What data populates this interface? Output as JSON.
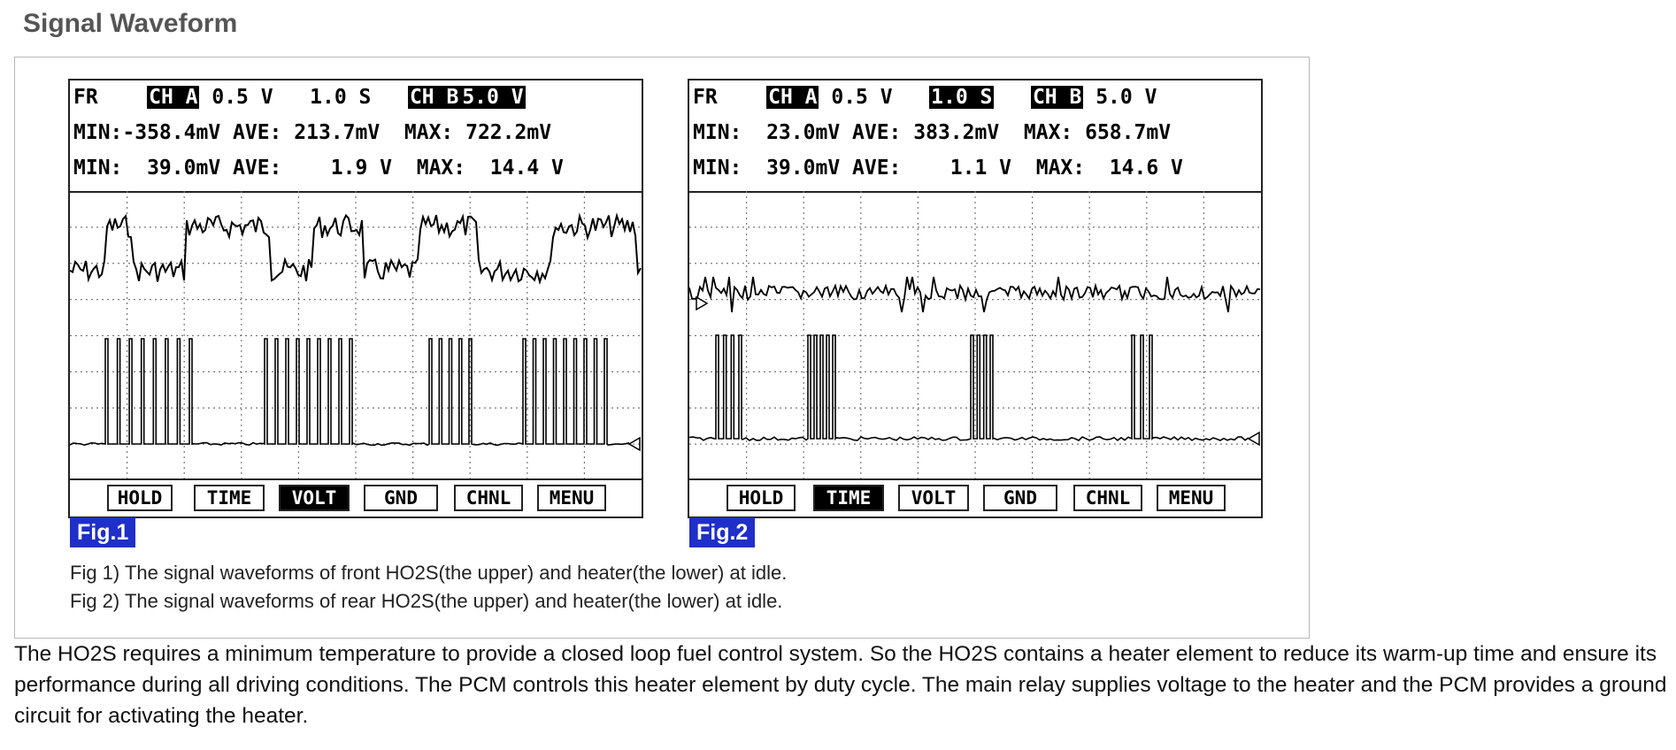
{
  "page_title": "Signal Waveform",
  "figures": [
    {
      "label": "Fig.1",
      "header": {
        "fr": "FR",
        "ch_a": "CH A",
        "ch_a_scale": "0.5 V",
        "time_scale": "1.0 S",
        "ch_b": "CH B",
        "ch_b_scale": "5.0 V",
        "row2": "MIN:-358.4mV AVE: 213.7mV  MAX: 722.2mV",
        "row3": "MIN:  39.0mV AVE:    1.9 V  MAX:  14.4 V"
      },
      "buttons": [
        "HOLD",
        "TIME",
        "VOLT",
        "GND",
        "CHNL",
        "MENU"
      ],
      "active_button": "VOLT"
    },
    {
      "label": "Fig.2",
      "header": {
        "fr": "FR",
        "ch_a": "CH A",
        "ch_a_scale": "0.5 V",
        "time_scale": "1.0 S",
        "ch_b": "CH B",
        "ch_b_scale": "5.0 V",
        "row2": "MIN:  23.0mV AVE: 383.2mV  MAX: 658.7mV",
        "row3": "MIN:  39.0mV AVE:    1.1 V  MAX:  14.6 V"
      },
      "buttons": [
        "HOLD",
        "TIME",
        "VOLT",
        "GND",
        "CHNL",
        "MENU"
      ],
      "active_button": "TIME"
    }
  ],
  "captions": [
    "Fig 1) The signal waveforms of front HO2S(the upper) and heater(the lower) at idle.",
    "Fig 2) The signal waveforms of rear HO2S(the upper) and heater(the lower) at idle."
  ],
  "paragraph": "The HO2S requires a minimum temperature to provide a closed loop fuel control system. So the HO2S contains a heater element to reduce its warm-up time and ensure its performance during all driving conditions. The PCM controls this heater element by duty cycle. The main relay supplies voltage to the heater and the PCM provides a ground circuit for activating the heater."
}
